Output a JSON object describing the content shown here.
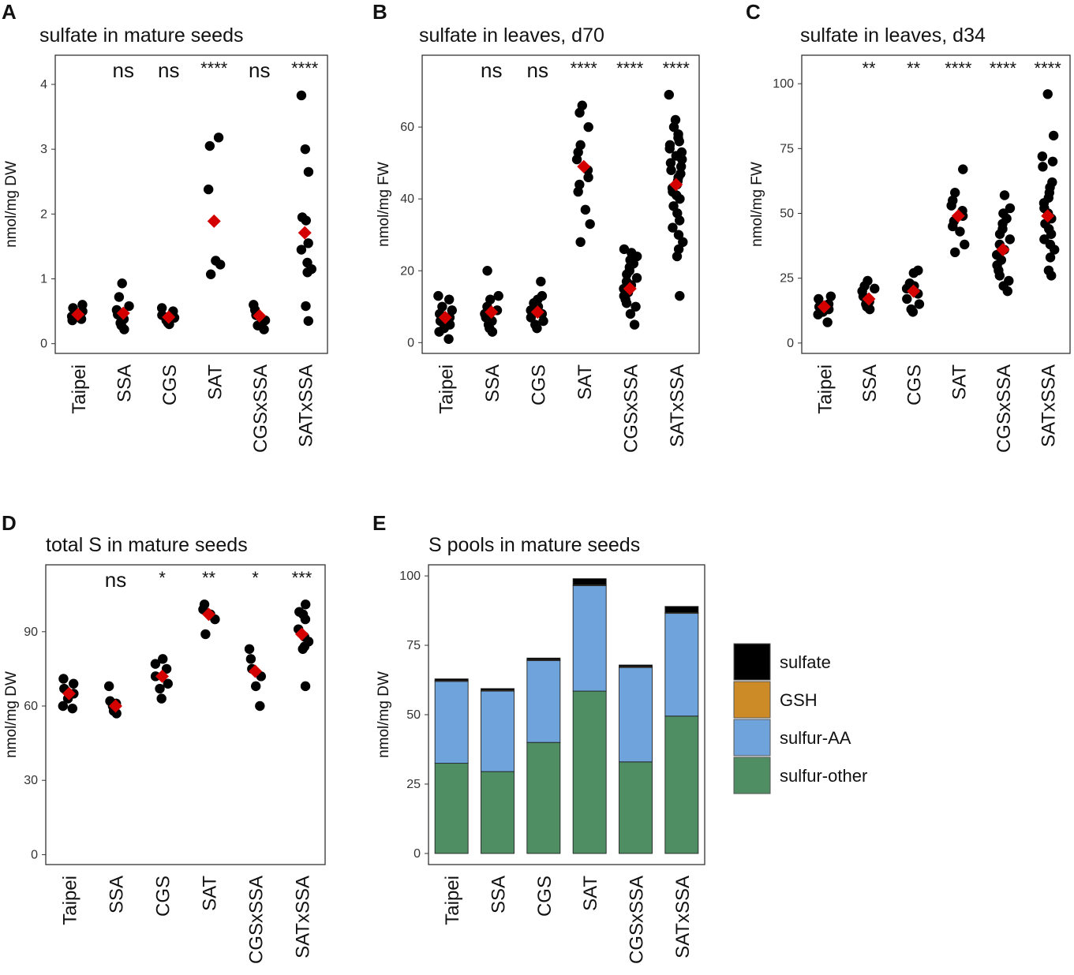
{
  "colors": {
    "point": "#000000",
    "mean": "#d40000",
    "sulfate": "#000000",
    "GSH": "#cc8b26",
    "sulfur_AA": "#6ea3dc",
    "sulfur_other": "#4f8d62",
    "frame": "#333333"
  },
  "chart_data": [
    {
      "id": "A",
      "letter": "A",
      "type": "scatter",
      "title": "sulfate in mature seeds",
      "ylabel": "nmol/mg DW",
      "xlabel": "",
      "ylim": [
        -0.15,
        4.45
      ],
      "yticks": [
        0,
        1,
        2,
        3,
        4
      ],
      "categories": [
        "Taipei",
        "SSA",
        "CGS",
        "SAT",
        "CGSxSSA",
        "SATxSSA"
      ],
      "significance": [
        "",
        "ns",
        "ns",
        "****",
        "ns",
        "****"
      ],
      "means": [
        0.45,
        0.47,
        0.41,
        1.89,
        0.43,
        1.71
      ],
      "points": [
        [
          0.38,
          0.42,
          0.46,
          0.5,
          0.55,
          0.6,
          0.36
        ],
        [
          0.22,
          0.28,
          0.32,
          0.38,
          0.45,
          0.52,
          0.58,
          0.72,
          0.93
        ],
        [
          0.32,
          0.36,
          0.4,
          0.44,
          0.5,
          0.55,
          0.3
        ],
        [
          1.07,
          1.22,
          1.28,
          2.38,
          3.05,
          3.18
        ],
        [
          0.22,
          0.3,
          0.36,
          0.44,
          0.52,
          0.6,
          0.28
        ],
        [
          0.35,
          0.58,
          1.1,
          1.15,
          1.25,
          1.45,
          1.55,
          1.9,
          1.95,
          2.65,
          3.0,
          3.83
        ]
      ]
    },
    {
      "id": "B",
      "letter": "B",
      "type": "scatter",
      "title": "sulfate in leaves, d70",
      "ylabel": "nmol/mg FW",
      "xlabel": "",
      "ylim": [
        -3,
        80
      ],
      "yticks": [
        0,
        20,
        40,
        60
      ],
      "categories": [
        "Taipei",
        "SSA",
        "CGS",
        "SAT",
        "CGSxSSA",
        "SATxSSA"
      ],
      "significance": [
        "",
        "ns",
        "ns",
        "****",
        "****",
        "****"
      ],
      "means": [
        7,
        8.5,
        8.5,
        49,
        15,
        44
      ],
      "points": [
        [
          1,
          3,
          4,
          5,
          6,
          7,
          8,
          9,
          10,
          12,
          13
        ],
        [
          3,
          4,
          5,
          6,
          7,
          8,
          9,
          10,
          12,
          13,
          20
        ],
        [
          4,
          5,
          6,
          7,
          8,
          9,
          10,
          11,
          12,
          13,
          17
        ],
        [
          28,
          33,
          37,
          42,
          44,
          46,
          48,
          51,
          53,
          55,
          60,
          64,
          66
        ],
        [
          5,
          8,
          10,
          11,
          12,
          13,
          14,
          15,
          16,
          17,
          18,
          19,
          20,
          21,
          22,
          23,
          24,
          25,
          26
        ],
        [
          13,
          24,
          26,
          28,
          30,
          32,
          34,
          36,
          38,
          40,
          41,
          42,
          43,
          44,
          45,
          46,
          47,
          48,
          49,
          50,
          51,
          52,
          53,
          54,
          55,
          56,
          57,
          58,
          60,
          62,
          69
        ]
      ]
    },
    {
      "id": "C",
      "letter": "C",
      "type": "scatter",
      "title": "sulfate in leaves, d34",
      "ylabel": "nmol/mg FW",
      "xlabel": "",
      "ylim": [
        -4,
        111
      ],
      "yticks": [
        0,
        25,
        50,
        75,
        100
      ],
      "categories": [
        "Taipei",
        "SSA",
        "CGS",
        "SAT",
        "CGSxSSA",
        "SATxSSA"
      ],
      "significance": [
        "",
        "**",
        "**",
        "****",
        "****",
        "****"
      ],
      "means": [
        14,
        17,
        20,
        49,
        36,
        49
      ],
      "points": [
        [
          8,
          11,
          12,
          13,
          14,
          15,
          17,
          18
        ],
        [
          13,
          14,
          15,
          16,
          18,
          20,
          21,
          22,
          24
        ],
        [
          12,
          13,
          15,
          17,
          19,
          21,
          22,
          23,
          27,
          28
        ],
        [
          35,
          38,
          43,
          45,
          47,
          49,
          51,
          53,
          55,
          58,
          67
        ],
        [
          20,
          22,
          24,
          26,
          28,
          30,
          32,
          34,
          36,
          38,
          40,
          42,
          44,
          46,
          48,
          50,
          52,
          57
        ],
        [
          26,
          28,
          33,
          36,
          38,
          40,
          42,
          44,
          46,
          48,
          50,
          52,
          54,
          56,
          58,
          60,
          62,
          68,
          70,
          72,
          80,
          96
        ]
      ]
    },
    {
      "id": "D",
      "letter": "D",
      "type": "scatter",
      "title": "total S in mature seeds",
      "ylabel": "nmol/mg DW",
      "xlabel": "",
      "ylim": [
        -4,
        117
      ],
      "yticks": [
        0,
        30,
        60,
        90
      ],
      "categories": [
        "Taipei",
        "SSA",
        "CGS",
        "SAT",
        "CGSxSSA",
        "SATxSSA"
      ],
      "significance": [
        "",
        "ns",
        "*",
        "**",
        "*",
        "***"
      ],
      "means": [
        65,
        60,
        72,
        97,
        74,
        89
      ],
      "points": [
        [
          59,
          60,
          63,
          65,
          67,
          69,
          71
        ],
        [
          57,
          58,
          60,
          61,
          62,
          68
        ],
        [
          63,
          67,
          69,
          72,
          75,
          77,
          79
        ],
        [
          89,
          95,
          97,
          99,
          101
        ],
        [
          60,
          68,
          72,
          75,
          79,
          83
        ],
        [
          68,
          83,
          84,
          86,
          88,
          91,
          95,
          97,
          98,
          101
        ]
      ]
    },
    {
      "id": "E",
      "letter": "E",
      "type": "bar",
      "stacked": true,
      "title": "S pools in mature seeds",
      "ylabel": "nmol/mg DW",
      "xlabel": "",
      "ylim": [
        -4,
        104
      ],
      "yticks": [
        0,
        25,
        50,
        75,
        100
      ],
      "categories": [
        "Taipei",
        "SSA",
        "CGS",
        "SAT",
        "CGSxSSA",
        "SATxSSA"
      ],
      "series": [
        {
          "name": "sulfur-other",
          "color": "#4f8d62",
          "values": [
            32.5,
            29.5,
            40,
            58.5,
            33,
            49.5
          ]
        },
        {
          "name": "sulfur-AA",
          "color": "#6ea3dc",
          "values": [
            29.5,
            29,
            29.5,
            38,
            34,
            37
          ]
        },
        {
          "name": "GSH",
          "color": "#cc8b26",
          "values": [
            0.3,
            0.3,
            0.3,
            0.3,
            0.3,
            0.3
          ]
        },
        {
          "name": "sulfate",
          "color": "#000000",
          "values": [
            0.6,
            0.6,
            0.6,
            2.2,
            0.6,
            2.2
          ]
        }
      ],
      "legend": [
        "sulfate",
        "GSH",
        "sulfur-AA",
        "sulfur-other"
      ],
      "legend_position": "right"
    }
  ]
}
